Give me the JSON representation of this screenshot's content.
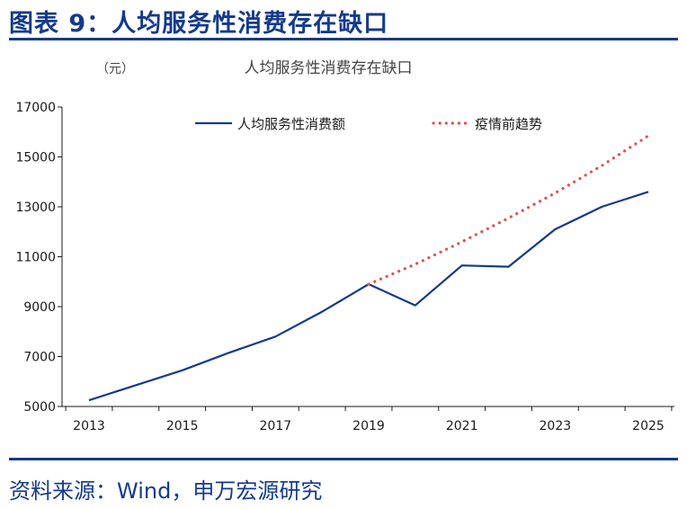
{
  "header": {
    "title": "图表 9：人均服务性消费存在缺口"
  },
  "source": {
    "text": "资料来源：Wind，申万宏源研究"
  },
  "colors": {
    "brand": "#143a8c",
    "series1": "#143a8c",
    "series2": "#e0524f",
    "axis": "#1a1a1a",
    "unit_text": "#444444"
  },
  "chart_data": {
    "type": "line",
    "title": "人均服务性消费存在缺口",
    "unit_label": "（元）",
    "xlabel": "",
    "ylabel": "",
    "xlim": [
      2013,
      2025
    ],
    "ylim": [
      5000,
      17000
    ],
    "yticks": [
      5000,
      7000,
      9000,
      11000,
      13000,
      15000,
      17000
    ],
    "ytick_labels": [
      "5000",
      "7000",
      "9000",
      "11000",
      "13000",
      "15000",
      "17000"
    ],
    "xticks": [
      2013,
      2015,
      2017,
      2019,
      2021,
      2023,
      2025
    ],
    "xtick_labels": [
      "2013",
      "2015",
      "2017",
      "2019",
      "2021",
      "2023",
      "2025"
    ],
    "legend_position": "top",
    "series": [
      {
        "name": "人均服务性消费额",
        "style": "solid",
        "x": [
          2013,
          2014,
          2015,
          2016,
          2017,
          2018,
          2019,
          2020,
          2021,
          2022,
          2023,
          2024,
          2025
        ],
        "values": [
          5250,
          5850,
          6450,
          7150,
          7800,
          8800,
          9900,
          9050,
          10650,
          10600,
          12100,
          13000,
          13600
        ]
      },
      {
        "name": "疫情前趋势",
        "style": "dotted",
        "x": [
          2019,
          2020,
          2021,
          2022,
          2023,
          2024,
          2025
        ],
        "values": [
          9900,
          10700,
          11600,
          12550,
          13550,
          14650,
          15850
        ]
      }
    ]
  }
}
